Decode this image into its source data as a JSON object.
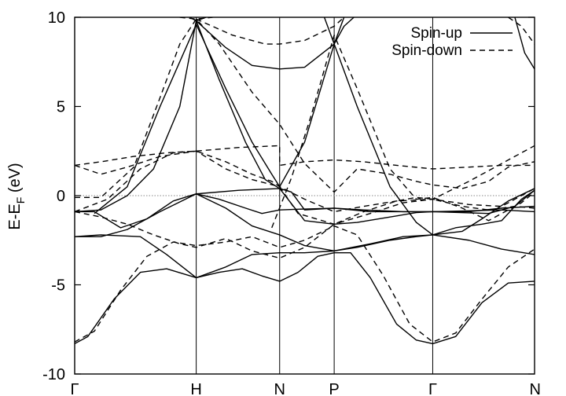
{
  "chart_data": {
    "type": "line",
    "title": "",
    "xlabel": "",
    "ylabel": "E-E",
    "ylabel_sub": "F",
    "ylabel_unit": " (eV)",
    "ylim": [
      -10,
      10
    ],
    "yticks": [
      -10,
      -5,
      0,
      5,
      10
    ],
    "ytick_labels": [
      "-10",
      "-5",
      "0",
      "5",
      "10"
    ],
    "xlim": [
      0,
      7
    ],
    "kpoints": [
      {
        "label": "Γ",
        "x": 0
      },
      {
        "label": "H",
        "x": 1.85
      },
      {
        "label": "N",
        "x": 3.12
      },
      {
        "label": "P",
        "x": 3.95
      },
      {
        "label": "Γ",
        "x": 5.45
      },
      {
        "label": "N",
        "x": 7
      }
    ],
    "fermi_level": 0,
    "grid": false,
    "legend_position": "top-right",
    "series": [
      {
        "name": "Spin-up",
        "dash": "solid",
        "bands": [
          [
            [
              0,
              -8.3
            ],
            [
              0.2,
              -7.9
            ],
            [
              0.6,
              -5.8
            ],
            [
              1.0,
              -4.3
            ],
            [
              1.4,
              -4.1
            ],
            [
              1.85,
              -4.6
            ],
            [
              2.2,
              -4.3
            ],
            [
              2.55,
              -4.1
            ],
            [
              2.85,
              -4.5
            ],
            [
              3.12,
              -4.8
            ],
            [
              3.4,
              -4.3
            ],
            [
              3.7,
              -3.4
            ],
            [
              3.95,
              -3.2
            ],
            [
              4.2,
              -3.2
            ],
            [
              4.5,
              -4.6
            ],
            [
              4.9,
              -7.2
            ],
            [
              5.2,
              -8.1
            ],
            [
              5.45,
              -8.3
            ],
            [
              5.8,
              -7.9
            ],
            [
              6.2,
              -6.0
            ],
            [
              6.6,
              -4.9
            ],
            [
              7.0,
              -4.8
            ]
          ],
          [
            [
              0,
              -2.3
            ],
            [
              0.4,
              -2.2
            ],
            [
              1.0,
              -2.3
            ],
            [
              1.4,
              -3.3
            ],
            [
              1.85,
              -4.6
            ],
            [
              2.3,
              -4.0
            ],
            [
              2.7,
              -3.3
            ],
            [
              3.12,
              -3.2
            ],
            [
              3.5,
              -3.2
            ],
            [
              3.95,
              -3.1
            ],
            [
              4.3,
              -2.9
            ],
            [
              4.8,
              -2.5
            ],
            [
              5.2,
              -2.3
            ],
            [
              5.45,
              -2.2
            ],
            [
              6.0,
              -2.5
            ],
            [
              6.5,
              -3.0
            ],
            [
              7.0,
              -3.3
            ]
          ],
          [
            [
              0,
              -2.3
            ],
            [
              0.4,
              -2.3
            ],
            [
              0.8,
              -1.9
            ],
            [
              1.3,
              -0.9
            ],
            [
              1.85,
              0.1
            ],
            [
              2.3,
              -0.7
            ],
            [
              2.7,
              -1.7
            ],
            [
              3.12,
              -2.2
            ],
            [
              3.5,
              -2.8
            ],
            [
              3.95,
              -3.1
            ],
            [
              4.5,
              -2.7
            ],
            [
              5.0,
              -2.3
            ],
            [
              5.45,
              -2.2
            ],
            [
              5.9,
              -2.0
            ],
            [
              6.2,
              -1.3
            ],
            [
              6.6,
              -0.3
            ],
            [
              7.0,
              0.4
            ]
          ],
          [
            [
              0,
              -0.9
            ],
            [
              0.3,
              -0.9
            ],
            [
              0.7,
              -1.8
            ],
            [
              1.1,
              -1.3
            ],
            [
              1.5,
              -0.3
            ],
            [
              1.85,
              0.1
            ],
            [
              2.2,
              -0.2
            ],
            [
              2.6,
              -0.7
            ],
            [
              2.85,
              -1.0
            ],
            [
              3.12,
              -0.8
            ],
            [
              3.5,
              -0.75
            ],
            [
              3.95,
              -0.7
            ],
            [
              4.4,
              -0.8
            ],
            [
              5.0,
              -0.9
            ],
            [
              5.45,
              -0.9
            ],
            [
              6.0,
              -0.9
            ],
            [
              6.5,
              -0.7
            ],
            [
              7.0,
              -0.6
            ]
          ],
          [
            [
              0,
              -0.9
            ],
            [
              0.4,
              -0.8
            ],
            [
              0.8,
              0.0
            ],
            [
              1.2,
              1.5
            ],
            [
              1.6,
              5.0
            ],
            [
              1.85,
              9.8
            ],
            [
              2.2,
              6.5
            ],
            [
              2.6,
              3.0
            ],
            [
              2.9,
              0.9
            ],
            [
              3.12,
              0.4
            ],
            [
              3.5,
              -1.4
            ],
            [
              3.95,
              -1.6
            ],
            [
              4.3,
              -1.5
            ],
            [
              4.8,
              -1.2
            ],
            [
              5.2,
              -0.95
            ],
            [
              5.45,
              -0.9
            ],
            [
              6.0,
              -0.85
            ],
            [
              6.5,
              -0.8
            ],
            [
              7.0,
              -0.9
            ]
          ],
          [
            [
              1.85,
              0.1
            ],
            [
              2.5,
              0.3
            ],
            [
              3.12,
              0.4
            ],
            [
              3.3,
              0.2
            ],
            [
              3.5,
              -0.8
            ],
            [
              3.95,
              -0.7
            ],
            [
              4.5,
              -0.9
            ],
            [
              5.45,
              -0.9
            ],
            [
              6.3,
              -1.0
            ],
            [
              6.7,
              -0.6
            ],
            [
              7.0,
              0.3
            ]
          ],
          [
            [
              0.3,
              -1.0
            ],
            [
              0.8,
              0.5
            ],
            [
              1.3,
              5.0
            ],
            [
              1.85,
              9.6
            ],
            [
              2.3,
              6.0
            ],
            [
              2.7,
              3.0
            ],
            [
              3.0,
              1.2
            ],
            [
              3.12,
              0.5
            ],
            [
              3.5,
              3.0
            ],
            [
              3.95,
              8.5
            ],
            [
              4.3,
              5.0
            ],
            [
              4.8,
              0.5
            ],
            [
              5.2,
              -1.5
            ],
            [
              5.45,
              -2.2
            ],
            [
              5.8,
              -1.8
            ],
            [
              6.2,
              -1.6
            ],
            [
              6.5,
              -1.4
            ],
            [
              6.8,
              -0.2
            ],
            [
              7.0,
              0.3
            ]
          ],
          [
            [
              1.85,
              9.8
            ],
            [
              2.3,
              8.3
            ],
            [
              2.7,
              7.3
            ],
            [
              3.12,
              7.1
            ],
            [
              3.5,
              7.2
            ],
            [
              3.95,
              8.5
            ],
            [
              4.1,
              9.5
            ],
            [
              4.25,
              10.0
            ]
          ],
          [
            [
              1.75,
              10.0
            ],
            [
              1.85,
              9.8
            ],
            [
              2.0,
              10.0
            ]
          ],
          [
            [
              3.8,
              10.0
            ],
            [
              3.95,
              8.5
            ],
            [
              4.1,
              10.0
            ]
          ],
          [
            [
              6.7,
              10.0
            ],
            [
              6.85,
              8.0
            ],
            [
              7.0,
              7.1
            ]
          ]
        ]
      },
      {
        "name": "Spin-down",
        "dash": "dashed",
        "bands": [
          [
            [
              0,
              -8.2
            ],
            [
              0.3,
              -7.6
            ],
            [
              0.7,
              -5.3
            ],
            [
              1.1,
              -3.4
            ],
            [
              1.5,
              -2.6
            ],
            [
              1.85,
              -2.8
            ],
            [
              2.3,
              -2.6
            ],
            [
              2.7,
              -2.3
            ],
            [
              3.12,
              -2.9
            ],
            [
              3.5,
              -2.5
            ],
            [
              3.95,
              -1.7
            ],
            [
              4.3,
              -2.2
            ],
            [
              4.7,
              -4.5
            ],
            [
              5.1,
              -7.2
            ],
            [
              5.45,
              -8.2
            ],
            [
              5.8,
              -7.7
            ],
            [
              6.2,
              -5.8
            ],
            [
              6.6,
              -4.0
            ],
            [
              7.0,
              -3.0
            ]
          ],
          [
            [
              0,
              -0.9
            ],
            [
              0.4,
              -1.2
            ],
            [
              0.8,
              -1.6
            ],
            [
              1.2,
              -2.2
            ],
            [
              1.6,
              -2.7
            ],
            [
              1.85,
              -2.9
            ],
            [
              2.3,
              -2.4
            ],
            [
              2.7,
              -3.1
            ],
            [
              3.12,
              -3.5
            ],
            [
              3.5,
              -2.9
            ],
            [
              3.95,
              -1.6
            ],
            [
              4.4,
              -0.9
            ],
            [
              4.9,
              -0.3
            ],
            [
              5.2,
              -0.1
            ],
            [
              5.45,
              -0.2
            ],
            [
              5.9,
              -0.6
            ],
            [
              6.3,
              -0.8
            ],
            [
              6.7,
              -0.6
            ],
            [
              7.0,
              -0.7
            ]
          ],
          [
            [
              0,
              -0.9
            ],
            [
              0.5,
              -0.2
            ],
            [
              1.0,
              1.5
            ],
            [
              1.5,
              2.4
            ],
            [
              1.85,
              2.5
            ],
            [
              2.3,
              1.9
            ],
            [
              2.7,
              1.2
            ],
            [
              3.0,
              0.8
            ],
            [
              3.12,
              0.5
            ],
            [
              3.5,
              -0.2
            ],
            [
              3.95,
              -0.9
            ],
            [
              4.4,
              -0.6
            ],
            [
              4.9,
              -0.3
            ],
            [
              5.45,
              -0.2
            ],
            [
              6.0,
              -0.5
            ],
            [
              6.5,
              -0.6
            ],
            [
              7.0,
              0.4
            ]
          ],
          [
            [
              0,
              1.7
            ],
            [
              0.4,
              1.9
            ],
            [
              0.9,
              2.2
            ],
            [
              1.4,
              2.4
            ],
            [
              1.85,
              2.5
            ],
            [
              2.5,
              2.7
            ],
            [
              3.12,
              2.8
            ],
            [
              3.12,
              1.7
            ],
            [
              3.5,
              1.9
            ],
            [
              3.95,
              2.0
            ],
            [
              4.4,
              1.9
            ],
            [
              4.9,
              1.7
            ],
            [
              5.45,
              1.5
            ],
            [
              6.0,
              1.6
            ],
            [
              6.5,
              1.7
            ],
            [
              7.0,
              1.7
            ]
          ],
          [
            [
              0,
              1.7
            ],
            [
              0.4,
              1.2
            ],
            [
              0.8,
              1.6
            ],
            [
              1.3,
              2.2
            ],
            [
              1.85,
              2.5
            ],
            [
              2.3,
              1.5
            ],
            [
              2.7,
              0.9
            ],
            [
              3.12,
              0.5
            ],
            [
              3.4,
              -1.0
            ],
            [
              3.95,
              -1.6
            ],
            [
              4.5,
              -1.0
            ],
            [
              5.0,
              -0.4
            ],
            [
              5.45,
              -0.2
            ],
            [
              6.0,
              0.8
            ],
            [
              6.5,
              1.8
            ],
            [
              7.0,
              2.8
            ]
          ],
          [
            [
              0,
              -0.1
            ],
            [
              0.4,
              -0.1
            ],
            [
              0.9,
              1.6
            ],
            [
              1.3,
              5.5
            ],
            [
              1.6,
              8.5
            ],
            [
              1.85,
              9.9
            ],
            [
              2.2,
              8.5
            ],
            [
              2.7,
              5.8
            ],
            [
              3.12,
              4.0
            ],
            [
              3.5,
              1.8
            ],
            [
              3.95,
              0.2
            ],
            [
              4.3,
              1.5
            ],
            [
              4.8,
              1.2
            ],
            [
              5.2,
              0.8
            ],
            [
              5.45,
              0.6
            ],
            [
              5.9,
              0.4
            ],
            [
              6.3,
              0.8
            ],
            [
              6.6,
              1.6
            ],
            [
              7.0,
              1.9
            ]
          ],
          [
            [
              1.85,
              9.9
            ],
            [
              2.4,
              9.0
            ],
            [
              2.9,
              8.5
            ],
            [
              3.12,
              8.5
            ],
            [
              3.5,
              8.7
            ],
            [
              3.95,
              9.5
            ],
            [
              4.1,
              10.0
            ]
          ],
          [
            [
              3.0,
              -1.8
            ],
            [
              3.3,
              1.0
            ],
            [
              3.6,
              4.5
            ],
            [
              3.95,
              9.0
            ],
            [
              4.3,
              6.0
            ],
            [
              4.8,
              1.5
            ],
            [
              5.2,
              -0.2
            ],
            [
              5.45,
              -0.1
            ],
            [
              5.9,
              -0.7
            ],
            [
              6.3,
              -1.4
            ],
            [
              6.8,
              -0.4
            ],
            [
              7.0,
              0.2
            ]
          ],
          [
            [
              1.6,
              10.0
            ],
            [
              1.85,
              9.9
            ],
            [
              2.1,
              10.0
            ]
          ],
          [
            [
              6.6,
              10.0
            ],
            [
              6.8,
              9.5
            ],
            [
              7.0,
              8.5
            ]
          ]
        ]
      }
    ]
  }
}
